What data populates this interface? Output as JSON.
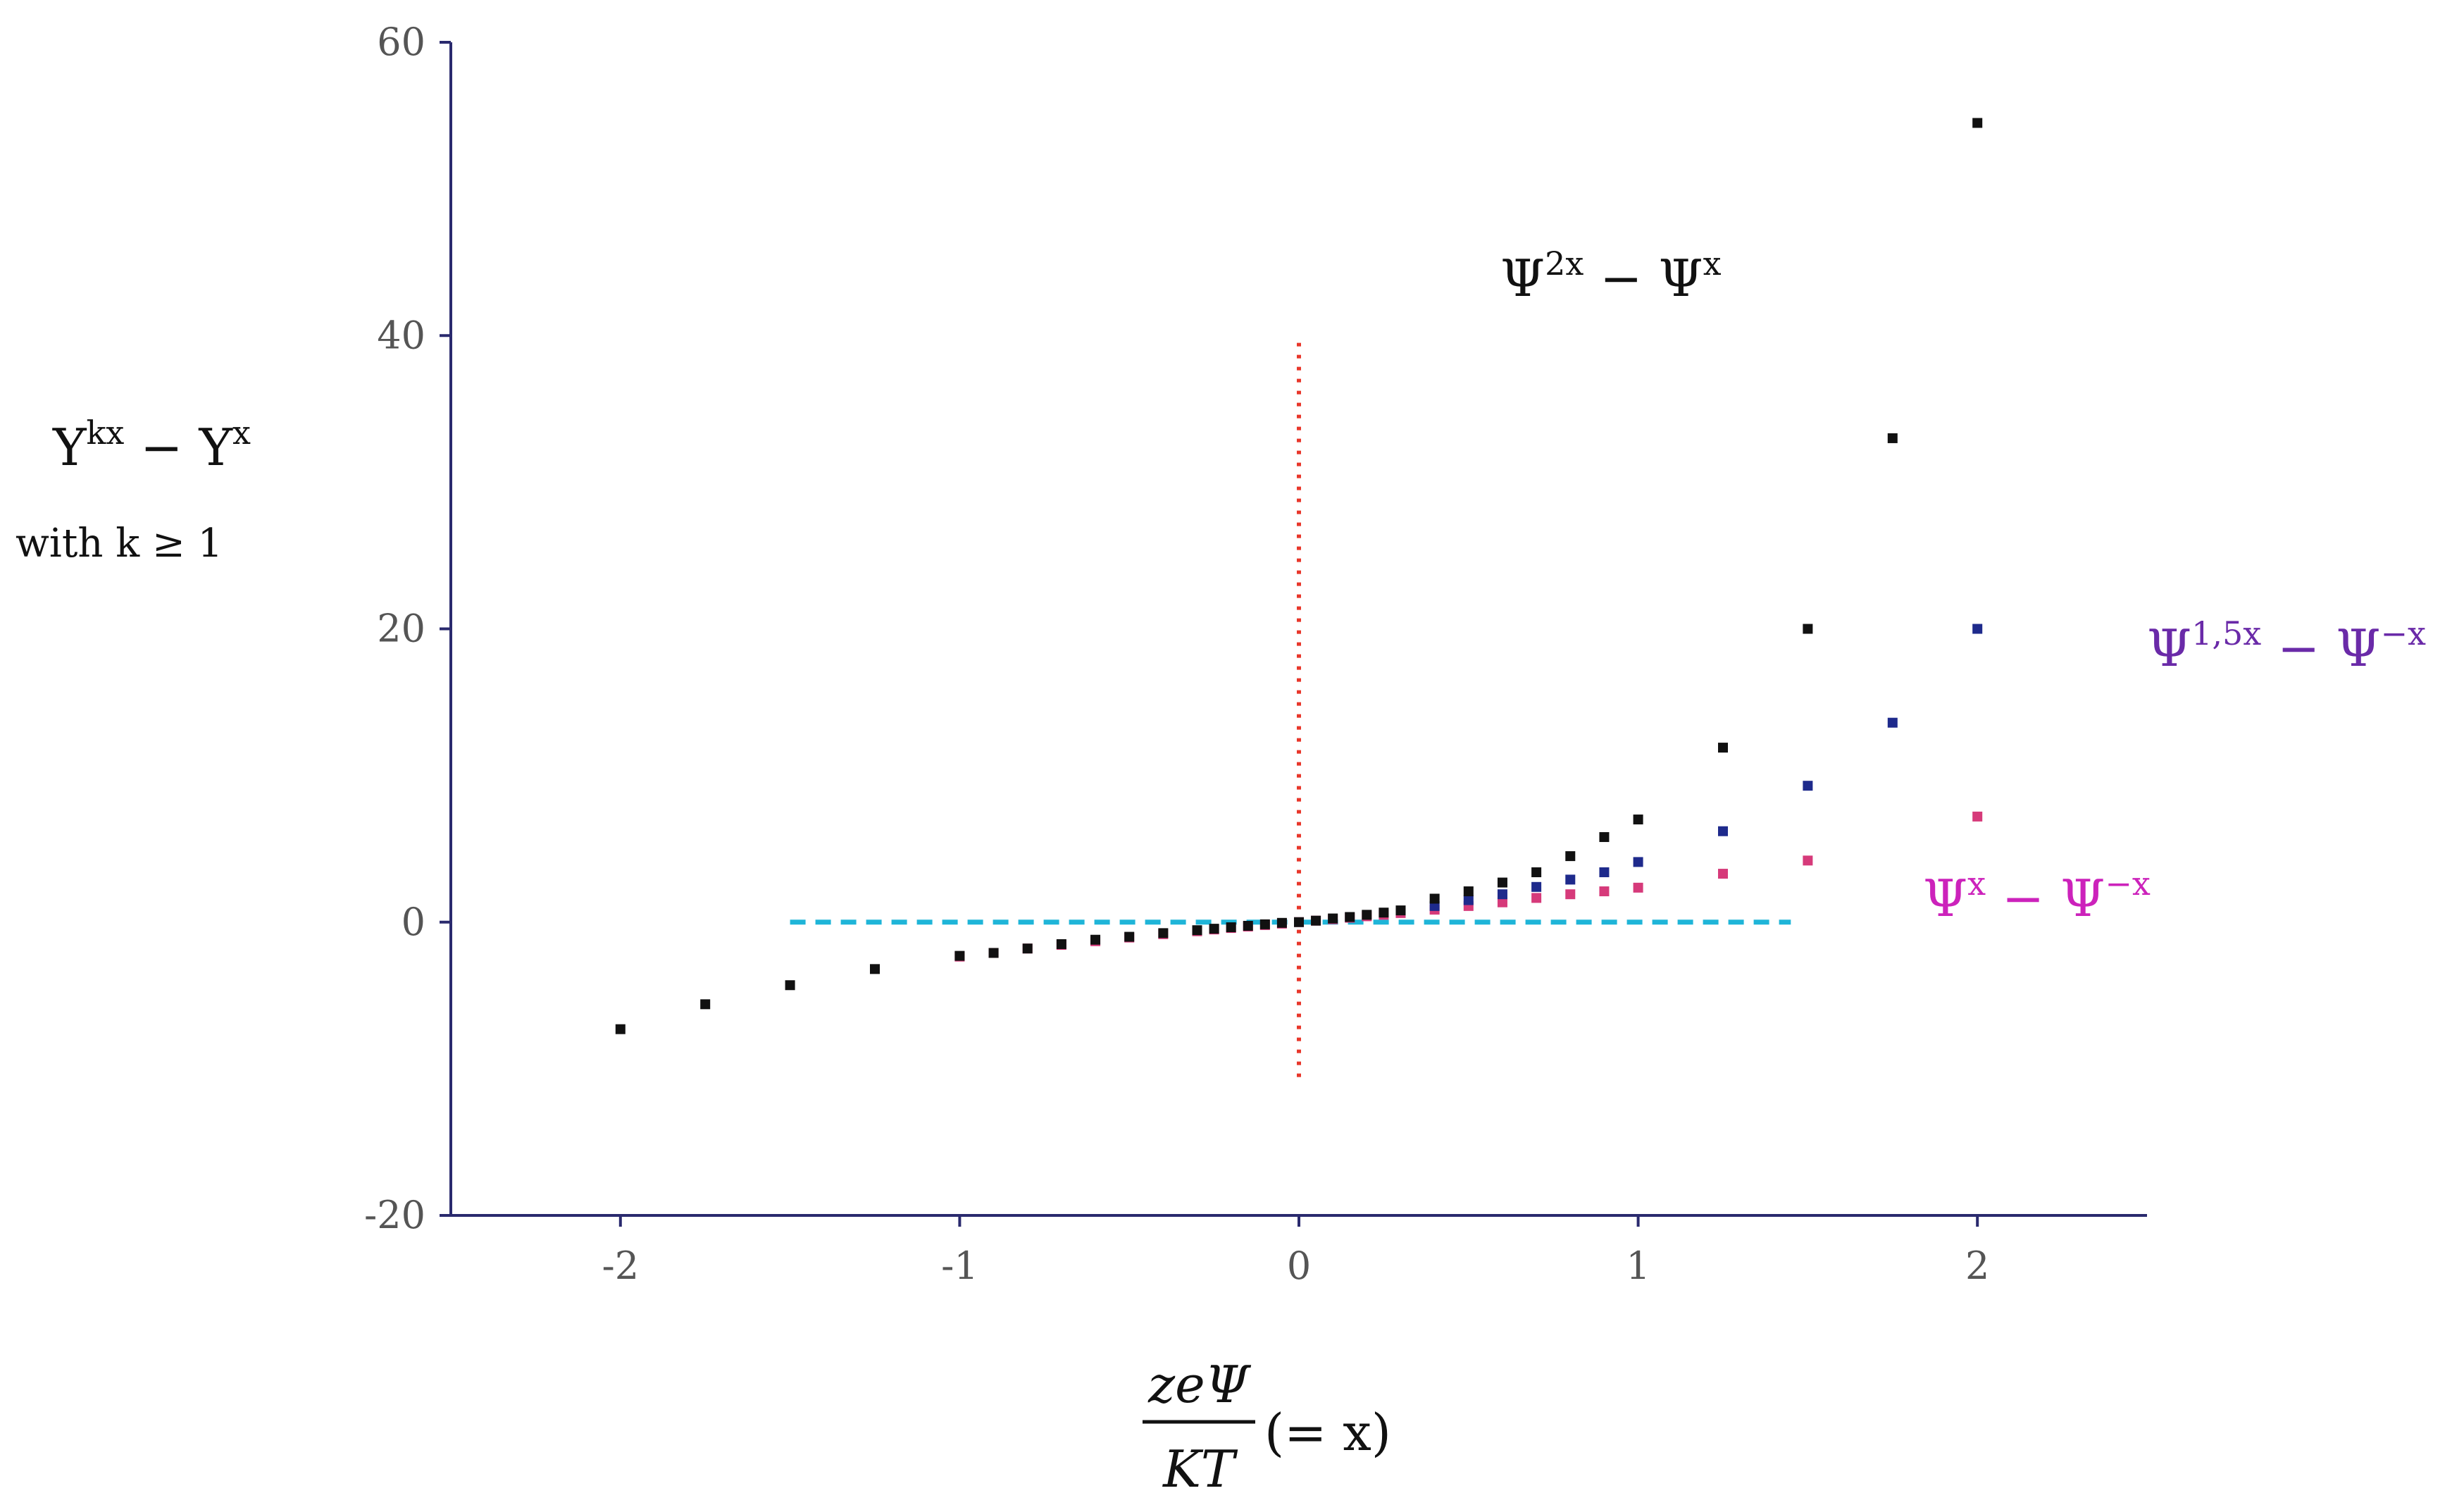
{
  "chart_data": {
    "type": "scatter",
    "title": "",
    "xlabel": {
      "numerator": "zeΨ",
      "denominator": "KT",
      "suffix": "(= x)"
    },
    "ylabel": {
      "line1_base": "Y",
      "line1_sup1": "kx",
      "line1_mid": " − Y",
      "line1_sup2": "x",
      "line2": "with k ≥ 1"
    },
    "xlim": [
      -2.5,
      2.5
    ],
    "ylim": [
      -20,
      60
    ],
    "xticks": [
      -2,
      -1,
      0,
      1,
      2
    ],
    "xtick_labels": [
      "-2",
      "-1",
      "0",
      "1",
      "2"
    ],
    "yticks": [
      -20,
      0,
      20,
      40,
      60
    ],
    "ytick_labels": [
      "-20",
      "0",
      "20",
      "40",
      "60"
    ],
    "grid": false,
    "reference_lines": [
      {
        "name": "zero-horizontal",
        "orientation": "horizontal",
        "value": 0,
        "from": -1.5,
        "to": 1.45,
        "color": "#1fb5d8",
        "style": "dashed"
      },
      {
        "name": "zero-vertical",
        "orientation": "vertical",
        "value": 0,
        "from": -11,
        "to": 39.5,
        "color": "#e8362a",
        "style": "dotted"
      }
    ],
    "series": [
      {
        "name": "Ψx − Ψ−x",
        "color": "#d63a7a",
        "x": [
          -1,
          -0.9,
          -0.8,
          -0.7,
          -0.6,
          -0.5,
          -0.4,
          -0.3,
          -0.25,
          -0.2,
          -0.15,
          -0.1,
          -0.05,
          0,
          0.05,
          0.1,
          0.15,
          0.2,
          0.25,
          0.3,
          0.4,
          0.5,
          0.6,
          0.7,
          0.8,
          0.9,
          1.0,
          1.25,
          1.5,
          2.0
        ],
        "y": [
          -2.35,
          -2.1,
          -1.8,
          -1.55,
          -1.3,
          -1.05,
          -0.82,
          -0.62,
          -0.5,
          -0.4,
          -0.3,
          -0.2,
          -0.1,
          0,
          0.1,
          0.2,
          0.3,
          0.4,
          0.5,
          0.62,
          0.85,
          1.1,
          1.35,
          1.65,
          1.9,
          2.1,
          2.35,
          3.3,
          4.2,
          7.2
        ]
      },
      {
        "name": "Ψ1,5x − Ψ−x",
        "color": "#1e2a8c",
        "x": [
          0.4,
          0.5,
          0.6,
          0.7,
          0.8,
          0.9,
          1.0,
          1.25,
          1.5,
          1.75,
          2.0
        ],
        "y": [
          1.1,
          1.5,
          1.9,
          2.4,
          2.9,
          3.4,
          4.1,
          6.2,
          9.3,
          13.6,
          20.0
        ]
      },
      {
        "name": "Ψ2x − Ψx",
        "color": "#111111",
        "x": [
          -2,
          -1.75,
          -1.5,
          -1.25,
          -1,
          -0.9,
          -0.8,
          -0.7,
          -0.6,
          -0.5,
          -0.4,
          -0.3,
          -0.25,
          -0.2,
          -0.15,
          -0.1,
          -0.05,
          0,
          0.05,
          0.1,
          0.15,
          0.2,
          0.25,
          0.3,
          0.4,
          0.5,
          0.6,
          0.7,
          0.8,
          0.9,
          1.0,
          1.25,
          1.5,
          1.75,
          2.0
        ],
        "y": [
          -7.3,
          -5.6,
          -4.3,
          -3.2,
          -2.3,
          -2.1,
          -1.8,
          -1.5,
          -1.2,
          -1.0,
          -0.75,
          -0.55,
          -0.45,
          -0.35,
          -0.25,
          -0.15,
          -0.05,
          0,
          0.1,
          0.25,
          0.35,
          0.5,
          0.65,
          0.8,
          1.6,
          2.1,
          2.7,
          3.4,
          4.5,
          5.8,
          7.0,
          11.9,
          20.0,
          33.0,
          54.5
        ]
      }
    ],
    "annotations": [
      {
        "name": "label-psi2x",
        "base": "Ψ",
        "sup1": "2x",
        "mid": " − Ψ",
        "sup2": "x",
        "color": "#111111"
      },
      {
        "name": "label-psi15x",
        "base": "Ψ",
        "sup1": "1,5x",
        "mid": " − Ψ",
        "sup2": "−x",
        "color": "#6a2aa8"
      },
      {
        "name": "label-psix",
        "base": "Ψ",
        "sup1": "x",
        "mid": " − Ψ",
        "sup2": "−x",
        "color": "#cc22bb"
      }
    ]
  }
}
